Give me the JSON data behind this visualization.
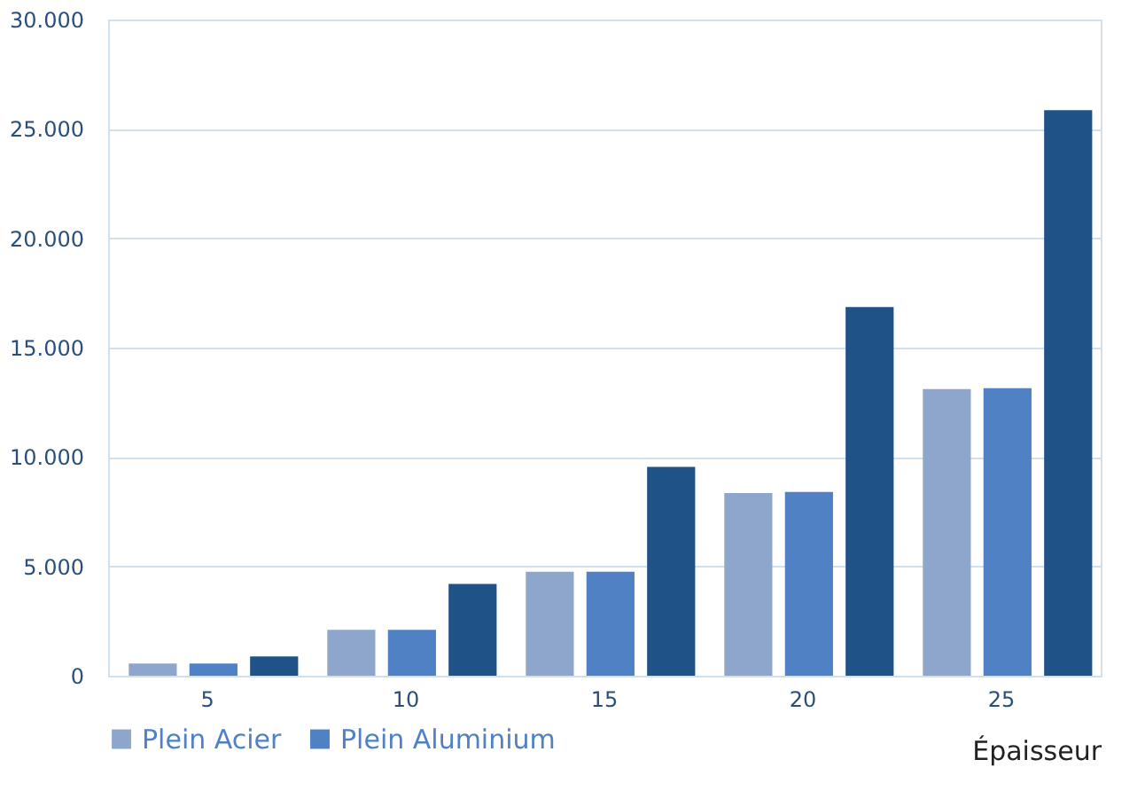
{
  "chart_data": {
    "type": "bar",
    "xlabel": "Épaisseur",
    "categories": [
      "5",
      "10",
      "15",
      "20",
      "25"
    ],
    "series": [
      {
        "name": "Plein Acier",
        "color": "#8fa6cc",
        "values": [
          560,
          2100,
          4750,
          8350,
          13100
        ]
      },
      {
        "name": "Plein Aluminium",
        "color": "#4f81c4",
        "values": [
          560,
          2100,
          4750,
          8400,
          13150
        ]
      },
      {
        "color": "#1f5286",
        "values": [
          880,
          4200,
          9550,
          16850,
          25850
        ]
      }
    ],
    "ylim": [
      0,
      30000
    ],
    "yticks": [
      {
        "value": 0,
        "label": "0"
      },
      {
        "value": 5000,
        "label": "5.000"
      },
      {
        "value": 10000,
        "label": "10.000"
      },
      {
        "value": 15000,
        "label": "15.000"
      },
      {
        "value": 20000,
        "label": "20.000"
      },
      {
        "value": 25000,
        "label": "25.000"
      },
      {
        "value": 30000,
        "label": "30.000"
      }
    ],
    "grid": "y",
    "legend": "bottom left"
  }
}
